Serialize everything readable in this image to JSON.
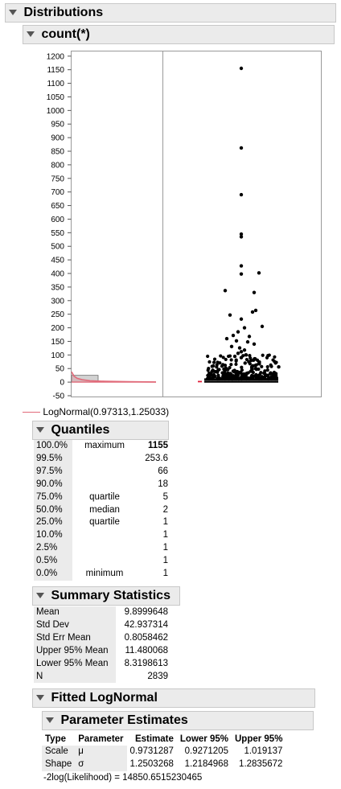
{
  "title": "Distributions",
  "variable": "count(*)",
  "chart_data": {
    "type": "histogram+outlier-boxplot",
    "y_ticks": [
      1200,
      1150,
      1100,
      1050,
      1000,
      950,
      900,
      850,
      800,
      750,
      700,
      650,
      600,
      550,
      500,
      450,
      400,
      350,
      300,
      250,
      200,
      150,
      100,
      50,
      0,
      -50
    ],
    "ylim": [
      -50,
      1200
    ],
    "histogram": {
      "bin_start": 0,
      "bin_end": 25,
      "approx_count_fraction": 0.9
    },
    "fit_curve": "LogNormal",
    "outliers": [
      1155,
      862,
      690,
      545,
      535,
      428,
      402,
      398,
      337,
      330,
      264,
      258,
      247,
      232,
      205,
      200,
      185,
      172,
      168,
      160,
      152,
      148,
      140,
      131,
      126,
      118,
      112,
      106,
      100,
      95,
      90,
      86,
      80,
      75,
      70,
      64,
      60,
      56,
      52,
      48,
      44,
      40,
      36,
      32,
      28,
      24,
      22,
      20
    ],
    "box": {
      "q1": 1,
      "median": 2,
      "q3": 5,
      "whisker_low": 1,
      "whisker_high": 11
    }
  },
  "legend": {
    "label": "LogNormal(0.97313,1.25033)",
    "color": "#e16b7a"
  },
  "quantiles": {
    "title": "Quantiles",
    "rows": [
      {
        "pct": "100.0%",
        "name": "maximum",
        "value": "1155"
      },
      {
        "pct": "99.5%",
        "name": "",
        "value": "253.6"
      },
      {
        "pct": "97.5%",
        "name": "",
        "value": "66"
      },
      {
        "pct": "90.0%",
        "name": "",
        "value": "18"
      },
      {
        "pct": "75.0%",
        "name": "quartile",
        "value": "5"
      },
      {
        "pct": "50.0%",
        "name": "median",
        "value": "2"
      },
      {
        "pct": "25.0%",
        "name": "quartile",
        "value": "1"
      },
      {
        "pct": "10.0%",
        "name": "",
        "value": "1"
      },
      {
        "pct": "2.5%",
        "name": "",
        "value": "1"
      },
      {
        "pct": "0.5%",
        "name": "",
        "value": "1"
      },
      {
        "pct": "0.0%",
        "name": "minimum",
        "value": "1"
      }
    ]
  },
  "summary": {
    "title": "Summary Statistics",
    "rows": [
      {
        "label": "Mean",
        "value": "9.8999648"
      },
      {
        "label": "Std Dev",
        "value": "42.937314"
      },
      {
        "label": "Std Err Mean",
        "value": "0.8058462"
      },
      {
        "label": "Upper 95% Mean",
        "value": "11.480068"
      },
      {
        "label": "Lower 95% Mean",
        "value": "8.3198613"
      },
      {
        "label": "N",
        "value": "2839"
      }
    ]
  },
  "fitted": {
    "title": "Fitted LogNormal",
    "param_title": "Parameter Estimates",
    "headers": [
      "Type",
      "Parameter",
      "Estimate",
      "Lower 95%",
      "Upper 95%"
    ],
    "rows": [
      {
        "type": "Scale",
        "param": "μ",
        "estimate": "0.9731287",
        "lower": "0.9271205",
        "upper": "1.019137"
      },
      {
        "type": "Shape",
        "param": "σ",
        "estimate": "1.2503268",
        "lower": "1.2184968",
        "upper": "1.2835672"
      }
    ],
    "likelihood": "-2log(Likelihood) = 14850.6515230465"
  }
}
